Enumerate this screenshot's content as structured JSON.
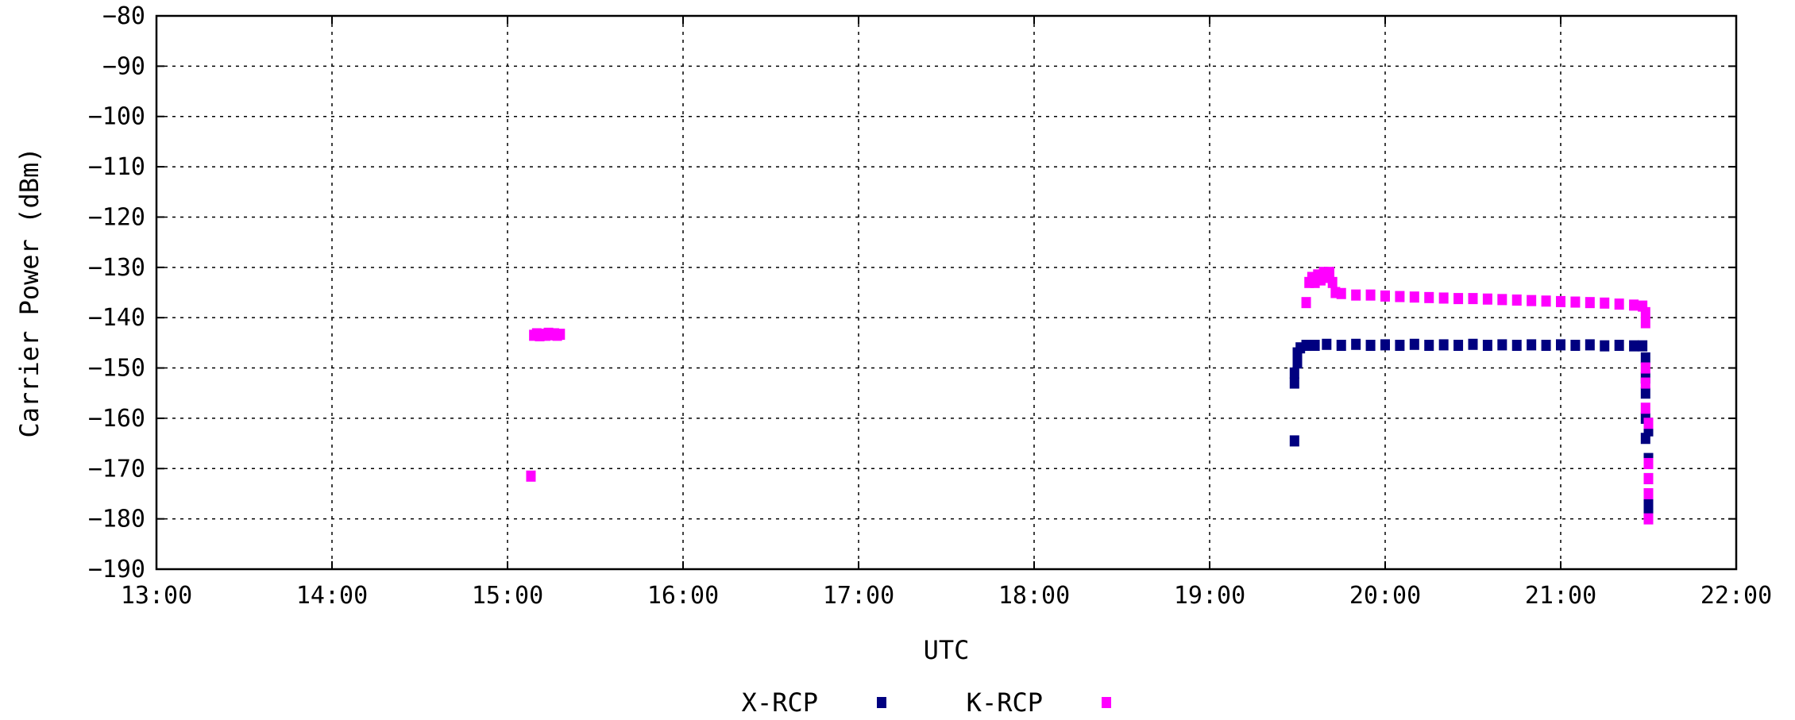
{
  "chart_data": {
    "type": "scatter",
    "xlabel": "UTC",
    "ylabel": "Carrier Power (dBm)",
    "xlim": [
      "13:00",
      "22:00"
    ],
    "ylim": [
      -190,
      -80
    ],
    "x_ticks": [
      "13:00",
      "14:00",
      "15:00",
      "16:00",
      "17:00",
      "18:00",
      "19:00",
      "20:00",
      "21:00",
      "22:00"
    ],
    "y_ticks": [
      -80,
      -90,
      -100,
      -110,
      -120,
      -130,
      -140,
      -150,
      -160,
      -170,
      -180,
      -190
    ],
    "grid": true,
    "legend": "bottom-center",
    "series": [
      {
        "name": "X-RCP",
        "color": "#000080",
        "marker": "square",
        "points": [
          [
            "19:29",
            -164.5
          ],
          [
            "19:29",
            -153
          ],
          [
            "19:29",
            -151
          ],
          [
            "19:30",
            -149
          ],
          [
            "19:30",
            -147
          ],
          [
            "19:31",
            -146
          ],
          [
            "19:33",
            -145.5
          ],
          [
            "19:36",
            -145.5
          ],
          [
            "19:40",
            -145.3
          ],
          [
            "19:45",
            -145.5
          ],
          [
            "19:50",
            -145.3
          ],
          [
            "19:55",
            -145.5
          ],
          [
            "20:00",
            -145.4
          ],
          [
            "20:05",
            -145.5
          ],
          [
            "20:10",
            -145.3
          ],
          [
            "20:15",
            -145.5
          ],
          [
            "20:20",
            -145.4
          ],
          [
            "20:25",
            -145.5
          ],
          [
            "20:30",
            -145.3
          ],
          [
            "20:35",
            -145.5
          ],
          [
            "20:40",
            -145.4
          ],
          [
            "20:45",
            -145.5
          ],
          [
            "20:50",
            -145.4
          ],
          [
            "20:55",
            -145.5
          ],
          [
            "21:00",
            -145.4
          ],
          [
            "21:05",
            -145.5
          ],
          [
            "21:10",
            -145.4
          ],
          [
            "21:15",
            -145.6
          ],
          [
            "21:20",
            -145.5
          ],
          [
            "21:25",
            -145.6
          ],
          [
            "21:28",
            -145.6
          ],
          [
            "21:29",
            -148
          ],
          [
            "21:29",
            -152
          ],
          [
            "21:29",
            -155
          ],
          [
            "21:29",
            -160
          ],
          [
            "21:29",
            -164
          ],
          [
            "21:30",
            -162.5
          ],
          [
            "21:30",
            -168
          ],
          [
            "21:30",
            -172
          ],
          [
            "21:30",
            -176
          ],
          [
            "21:30",
            -178
          ],
          [
            "21:30",
            -179.5
          ]
        ]
      },
      {
        "name": "K-RCP",
        "color": "#ff00ff",
        "marker": "square",
        "points": [
          [
            "15:08",
            -171.5
          ],
          [
            "15:09",
            -143.5
          ],
          [
            "15:10",
            -143.2
          ],
          [
            "15:11",
            -143.6
          ],
          [
            "15:12",
            -143.3
          ],
          [
            "15:13",
            -143.5
          ],
          [
            "15:14",
            -143.1
          ],
          [
            "15:15",
            -143.4
          ],
          [
            "15:16",
            -143.2
          ],
          [
            "15:17",
            -143.5
          ],
          [
            "15:18",
            -143.3
          ],
          [
            "19:33",
            -137
          ],
          [
            "19:34",
            -133
          ],
          [
            "19:35",
            -132
          ],
          [
            "19:36",
            -133
          ],
          [
            "19:37",
            -131.5
          ],
          [
            "19:38",
            -132.5
          ],
          [
            "19:39",
            -131
          ],
          [
            "19:40",
            -132
          ],
          [
            "19:41",
            -131
          ],
          [
            "19:42",
            -133
          ],
          [
            "19:43",
            -135
          ],
          [
            "19:45",
            -135.2
          ],
          [
            "19:50",
            -135.5
          ],
          [
            "19:55",
            -135.5
          ],
          [
            "20:00",
            -135.7
          ],
          [
            "20:05",
            -135.8
          ],
          [
            "20:10",
            -135.9
          ],
          [
            "20:15",
            -136
          ],
          [
            "20:20",
            -136.1
          ],
          [
            "20:25",
            -136.2
          ],
          [
            "20:30",
            -136.2
          ],
          [
            "20:35",
            -136.3
          ],
          [
            "20:40",
            -136.4
          ],
          [
            "20:45",
            -136.5
          ],
          [
            "20:50",
            -136.6
          ],
          [
            "20:55",
            -136.7
          ],
          [
            "21:00",
            -136.8
          ],
          [
            "21:05",
            -136.9
          ],
          [
            "21:10",
            -137
          ],
          [
            "21:15",
            -137.1
          ],
          [
            "21:20",
            -137.3
          ],
          [
            "21:25",
            -137.5
          ],
          [
            "21:28",
            -137.7
          ],
          [
            "21:29",
            -139
          ],
          [
            "21:29",
            -141
          ],
          [
            "21:29",
            -150
          ],
          [
            "21:29",
            -153
          ],
          [
            "21:29",
            -158
          ],
          [
            "21:30",
            -161
          ],
          [
            "21:30",
            -169
          ],
          [
            "21:30",
            -172
          ],
          [
            "21:30",
            -175
          ],
          [
            "21:30",
            -180
          ]
        ]
      }
    ]
  }
}
